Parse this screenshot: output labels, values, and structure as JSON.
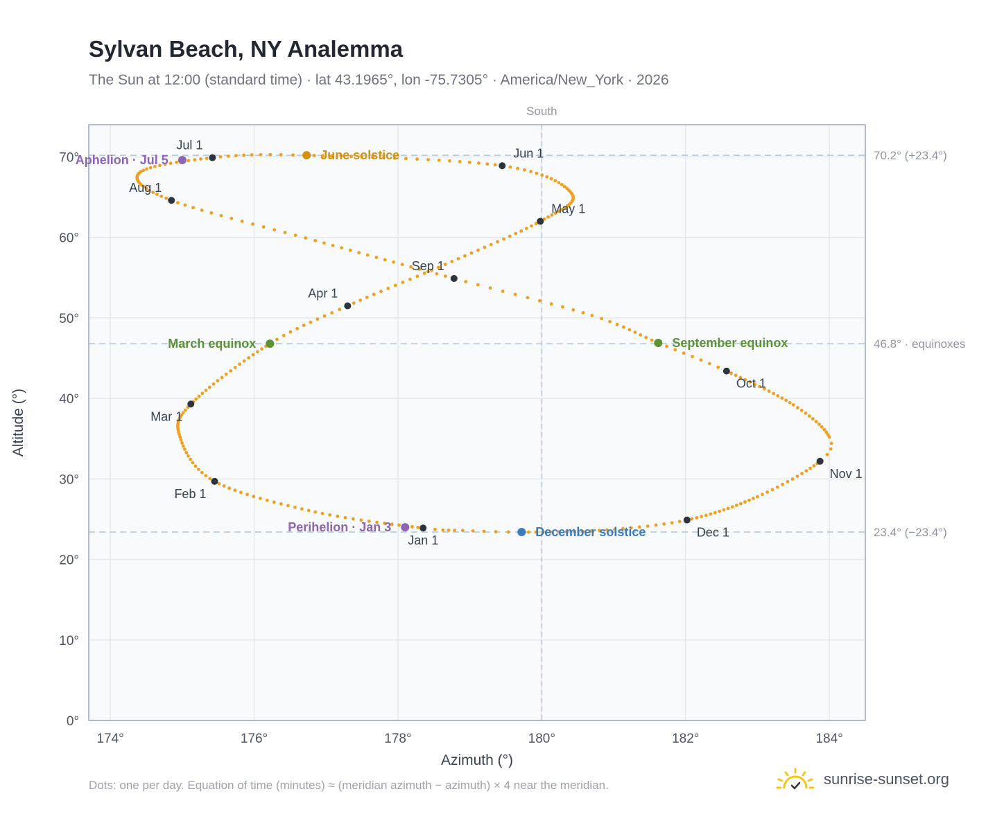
{
  "header": {
    "title": "Sylvan Beach, NY Analemma",
    "subtitle": "The Sun at 12:00 (standard time) · lat 43.1965°, lon -75.7305° · America/New_York · 2026"
  },
  "footer": {
    "note": "Dots: one per day. Equation of time (minutes) ≈ (meridian azimuth − azimuth) × 4 near the meridian.",
    "brand": "sunrise-sunset.org"
  },
  "colors": {
    "curve": "#f0a020",
    "month_marker": "#2d3440",
    "june": "#d4920a",
    "december": "#3a7ac0",
    "equinox": "#5a9234",
    "aphelion_perihelion": "#8e65b0",
    "reference_line": "#b3c4d4",
    "plot_bg": "#f8fafc",
    "grid": "#e5e9ef",
    "frame": "#9aa6b6",
    "brand_sun": "#f5c518"
  },
  "chart_data": {
    "type": "scatter",
    "xlabel": "Azimuth (°)",
    "ylabel": "Altitude (°)",
    "xlim": [
      173.7,
      184.5
    ],
    "ylim": [
      0,
      74
    ],
    "x_ticks": [
      174,
      176,
      178,
      180,
      182,
      184
    ],
    "x_tick_labels": [
      "174°",
      "176°",
      "178°",
      "180°",
      "182°",
      "184°"
    ],
    "y_ticks": [
      0,
      10,
      20,
      30,
      40,
      50,
      60,
      70
    ],
    "y_tick_labels": [
      "0°",
      "10°",
      "20°",
      "30°",
      "40°",
      "50°",
      "60°",
      "70°"
    ],
    "grid": true,
    "meridian": {
      "x": 180,
      "label": "South"
    },
    "reference_lines": [
      {
        "y": 70.2,
        "label": "70.2° (+23.4°)"
      },
      {
        "y": 46.8,
        "label": "46.8° · equinoxes"
      },
      {
        "y": 23.4,
        "label": "23.4° (−23.4°)"
      }
    ],
    "month_markers": [
      {
        "label": "Jan 1",
        "x": 178.35,
        "y": 23.9,
        "label_pos": "below"
      },
      {
        "label": "Feb 1",
        "x": 175.45,
        "y": 29.7,
        "label_pos": "below-left"
      },
      {
        "label": "Mar 1",
        "x": 175.12,
        "y": 39.3,
        "label_pos": "below-left"
      },
      {
        "label": "Apr 1",
        "x": 177.3,
        "y": 51.5,
        "label_pos": "above-left"
      },
      {
        "label": "May 1",
        "x": 179.98,
        "y": 62.0,
        "label_pos": "above-right"
      },
      {
        "label": "Jun 1",
        "x": 179.45,
        "y": 68.9,
        "label_pos": "above-right"
      },
      {
        "label": "Jul 1",
        "x": 175.42,
        "y": 69.9,
        "label_pos": "above-left"
      },
      {
        "label": "Aug 1",
        "x": 174.85,
        "y": 64.6,
        "label_pos": "above-left"
      },
      {
        "label": "Sep 1",
        "x": 178.78,
        "y": 54.9,
        "label_pos": "above-left"
      },
      {
        "label": "Oct 1",
        "x": 182.57,
        "y": 43.4,
        "label_pos": "below-right"
      },
      {
        "label": "Nov 1",
        "x": 183.87,
        "y": 32.2,
        "label_pos": "below-right"
      },
      {
        "label": "Dec 1",
        "x": 182.02,
        "y": 24.9,
        "label_pos": "below-right"
      }
    ],
    "special_points": [
      {
        "label": "June solstice",
        "x": 176.73,
        "y": 70.2,
        "color": "#d4920a",
        "label_pos": "right"
      },
      {
        "label": "December solstice",
        "x": 179.72,
        "y": 23.4,
        "color": "#3a7ac0",
        "label_pos": "right"
      },
      {
        "label": "March equinox",
        "x": 176.22,
        "y": 46.8,
        "color": "#5a9234",
        "label_pos": "left"
      },
      {
        "label": "September equinox",
        "x": 181.62,
        "y": 46.9,
        "color": "#5a9234",
        "label_pos": "right"
      },
      {
        "label": "Aphelion · Jul 5",
        "x": 175.0,
        "y": 69.6,
        "color": "#8e65b0",
        "label_pos": "left"
      },
      {
        "label": "Perihelion · Jan 3",
        "x": 178.1,
        "y": 24.0,
        "color": "#8e65b0",
        "label_pos": "left"
      }
    ],
    "curve_knots": [
      {
        "x": 178.35,
        "y": 23.9
      },
      {
        "x": 176.85,
        "y": 25.9
      },
      {
        "x": 175.45,
        "y": 29.7
      },
      {
        "x": 174.97,
        "y": 35.2
      },
      {
        "x": 175.12,
        "y": 39.3
      },
      {
        "x": 176.22,
        "y": 46.8
      },
      {
        "x": 177.3,
        "y": 51.5
      },
      {
        "x": 178.75,
        "y": 57.0
      },
      {
        "x": 179.98,
        "y": 62.0
      },
      {
        "x": 180.42,
        "y": 65.4
      },
      {
        "x": 179.45,
        "y": 68.9
      },
      {
        "x": 176.73,
        "y": 70.2
      },
      {
        "x": 175.42,
        "y": 69.9
      },
      {
        "x": 174.4,
        "y": 68.0
      },
      {
        "x": 174.85,
        "y": 64.6
      },
      {
        "x": 176.85,
        "y": 59.6
      },
      {
        "x": 178.78,
        "y": 54.9
      },
      {
        "x": 180.7,
        "y": 50.3
      },
      {
        "x": 181.62,
        "y": 46.9
      },
      {
        "x": 182.57,
        "y": 43.4
      },
      {
        "x": 183.5,
        "y": 39.2
      },
      {
        "x": 184.0,
        "y": 35.2
      },
      {
        "x": 183.87,
        "y": 32.2
      },
      {
        "x": 183.0,
        "y": 27.8
      },
      {
        "x": 182.02,
        "y": 24.9
      },
      {
        "x": 180.8,
        "y": 23.6
      },
      {
        "x": 179.72,
        "y": 23.4
      },
      {
        "x": 178.9,
        "y": 23.6
      },
      {
        "x": 178.35,
        "y": 23.9
      }
    ],
    "curve_knot_days": [
      0,
      15,
      31,
      45,
      59,
      79,
      90,
      105,
      120,
      135,
      151,
      171,
      181,
      196,
      212,
      227,
      243,
      255,
      265,
      273,
      288,
      300,
      304,
      318,
      334,
      345,
      355,
      360,
      365
    ]
  }
}
